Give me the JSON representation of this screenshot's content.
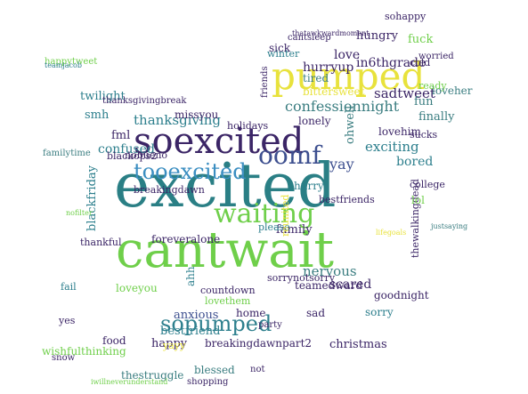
{
  "words": [
    {
      "text": "excited",
      "color": "#2a7f85",
      "size": 3
    },
    {
      "text": "cantwait",
      "color": "#6fcf4a",
      "size": 3
    },
    {
      "text": "soexcited",
      "color": "#3b2566",
      "size": 2
    },
    {
      "text": "pumped",
      "color": "#e8e23c",
      "size": 2
    },
    {
      "text": "tooexcited",
      "color": "#3b8ec1",
      "size": 2
    },
    {
      "text": "waiting",
      "color": "#6fcf4a",
      "size": 2
    },
    {
      "text": "oomf",
      "color": "#3d4f8f",
      "size": 2
    },
    {
      "text": "sopumped",
      "color": "#2d7f8d",
      "size": 2
    },
    {
      "text": "confessionnight",
      "color": "#3a7d80",
      "size": 1
    },
    {
      "text": "thanksgiving",
      "color": "#2d7f8d",
      "size": 1
    },
    {
      "text": "sadtweet",
      "color": "#3b2566",
      "size": 1
    },
    {
      "text": "exciting",
      "color": "#2d7f8d",
      "size": 1
    },
    {
      "text": "nervous",
      "color": "#3a7d80",
      "size": 1
    },
    {
      "text": "happy",
      "color": "#3b2566",
      "size": 1
    },
    {
      "text": "christmas",
      "color": "#3b2566",
      "size": 1
    },
    {
      "text": "blackfriday",
      "color": "#2d7f8d",
      "size": 1
    },
    {
      "text": "confused",
      "color": "#2d7f8d",
      "size": 1
    },
    {
      "text": "hurryup",
      "color": "#3b2566",
      "size": 1
    },
    {
      "text": "in6thgrade",
      "color": "#3b2566",
      "size": 1
    },
    {
      "text": "yay",
      "color": "#3d4f8f",
      "size": 1
    },
    {
      "text": "twilight",
      "color": "#2d7f8d",
      "size": 1
    },
    {
      "text": "love",
      "color": "#3b2566",
      "size": 1
    },
    {
      "text": "fml",
      "color": "#3b2566",
      "size": 1
    },
    {
      "text": "fun",
      "color": "#3a7d80",
      "size": 1
    },
    {
      "text": "finally",
      "color": "#3a7d80",
      "size": 1
    },
    {
      "text": "bored",
      "color": "#2d7f8d",
      "size": 1
    },
    {
      "text": "hungry",
      "color": "#3b2566",
      "size": 1
    },
    {
      "text": "fuck",
      "color": "#6fcf4a",
      "size": 1
    },
    {
      "text": "smh",
      "color": "#2d7f8d",
      "size": 1
    },
    {
      "text": "family",
      "color": "#3b2566",
      "size": 1
    },
    {
      "text": "scared",
      "color": "#3b2566",
      "size": 1
    },
    {
      "text": "anxious",
      "color": "#3d4f8f",
      "size": 1
    },
    {
      "text": "bestfriend",
      "color": "#2d7f8d",
      "size": 1
    },
    {
      "text": "blessed",
      "color": "#3a7d80",
      "size": 1
    },
    {
      "text": "breakingdawnpart2",
      "color": "#3b2566",
      "size": 1
    },
    {
      "text": "thestruggle",
      "color": "#3a7d80",
      "size": 1
    },
    {
      "text": "loveher",
      "color": "#3a7d80",
      "size": 1
    },
    {
      "text": "lovehim",
      "color": "#3b2566",
      "size": 1
    },
    {
      "text": "hurry",
      "color": "#2d7f8d",
      "size": 1
    },
    {
      "text": "foreveralone",
      "color": "#3b2566",
      "size": 1
    },
    {
      "text": "loveyou",
      "color": "#6fcf4a",
      "size": 1
    },
    {
      "text": "sorry",
      "color": "#2d7f8d",
      "size": 1
    },
    {
      "text": "goodnight",
      "color": "#3b2566",
      "size": 1
    },
    {
      "text": "food",
      "color": "#3b2566",
      "size": 1
    },
    {
      "text": "wishfulthinking",
      "color": "#6fcf4a",
      "size": 1
    },
    {
      "text": "missyou",
      "color": "#3b2566",
      "size": 1
    },
    {
      "text": "lonely",
      "color": "#3b2566",
      "size": 1
    },
    {
      "text": "thewalkingdead",
      "color": "#3b2566",
      "size": 1
    },
    {
      "text": "ohwell",
      "color": "#3a7d80",
      "size": 1
    },
    {
      "text": "bestfriends",
      "color": "#3b2566",
      "size": 1
    },
    {
      "text": "sucks",
      "color": "#3b2566",
      "size": 1
    },
    {
      "text": "ready",
      "color": "#6fcf4a",
      "size": 1
    },
    {
      "text": "sick",
      "color": "#3b2566",
      "size": 1
    },
    {
      "text": "tired",
      "color": "#3a7d80",
      "size": 1
    },
    {
      "text": "cold",
      "color": "#3b2566",
      "size": 1
    },
    {
      "text": "lol",
      "color": "#6fcf4a",
      "size": 1
    },
    {
      "text": "college",
      "color": "#3b2566",
      "size": 1
    },
    {
      "text": "sad",
      "color": "#3b2566",
      "size": 1
    },
    {
      "text": "teamedward",
      "color": "#3b2566",
      "size": 1
    },
    {
      "text": "home",
      "color": "#3b2566",
      "size": 1
    },
    {
      "text": "countdown",
      "color": "#3b2566",
      "size": 1
    },
    {
      "text": "lovethem",
      "color": "#6fcf4a",
      "size": 1
    },
    {
      "text": "ahh",
      "color": "#2d7f8d",
      "size": 1
    },
    {
      "text": "sorrynotsorry",
      "color": "#3b2566",
      "size": 1
    },
    {
      "text": "thankful",
      "color": "#3b2566",
      "size": 1
    },
    {
      "text": "please",
      "color": "#2d7f8d",
      "size": 1
    },
    {
      "text": "reunited",
      "color": "#e8e23c",
      "size": 1
    },
    {
      "text": "holidays",
      "color": "#3b2566",
      "size": 1
    },
    {
      "text": "winter",
      "color": "#2d7f8d",
      "size": 1
    },
    {
      "text": "sohappy",
      "color": "#3b2566",
      "size": 1
    },
    {
      "text": "worried",
      "color": "#3b2566",
      "size": 1
    },
    {
      "text": "bittersweet",
      "color": "#e8e23c",
      "size": 1
    },
    {
      "text": "blackops2",
      "color": "#3b2566",
      "size": 1
    },
    {
      "text": "nobueno",
      "color": "#3b2566",
      "size": 1
    },
    {
      "text": "breakingdawn",
      "color": "#3b2566",
      "size": 1
    },
    {
      "text": "happytweet",
      "color": "#6fcf4a",
      "size": 1
    },
    {
      "text": "familytime",
      "color": "#3a7d80",
      "size": 1
    },
    {
      "text": "thanksgivingbreak",
      "color": "#3b2566",
      "size": 1
    },
    {
      "text": "fail",
      "color": "#2d7f8d",
      "size": 1
    },
    {
      "text": "yes",
      "color": "#3b2566",
      "size": 1
    },
    {
      "text": "yayy",
      "color": "#e8e23c",
      "size": 1
    },
    {
      "text": "snow",
      "color": "#3b2566",
      "size": 1
    },
    {
      "text": "shopping",
      "color": "#3b2566",
      "size": 1
    },
    {
      "text": "not",
      "color": "#3b2566",
      "size": 1
    },
    {
      "text": "party",
      "color": "#3b2566",
      "size": 1
    },
    {
      "text": "friends",
      "color": "#3b2566",
      "size": 1
    },
    {
      "text": "cantsleep",
      "color": "#3b2566",
      "size": 1
    },
    {
      "text": "iwillneverunderstand",
      "color": "#6fcf4a",
      "size": 0
    },
    {
      "text": "thatawkwardmoment",
      "color": "#3b2566",
      "size": 0
    },
    {
      "text": "teamjacob",
      "color": "#2d7f8d",
      "size": 0
    },
    {
      "text": "nofilter",
      "color": "#6fcf4a",
      "size": 0
    },
    {
      "text": "justsaying",
      "color": "#3a7d80",
      "size": 0
    },
    {
      "text": "lifegoals",
      "color": "#e8e23c",
      "size": 0
    }
  ]
}
